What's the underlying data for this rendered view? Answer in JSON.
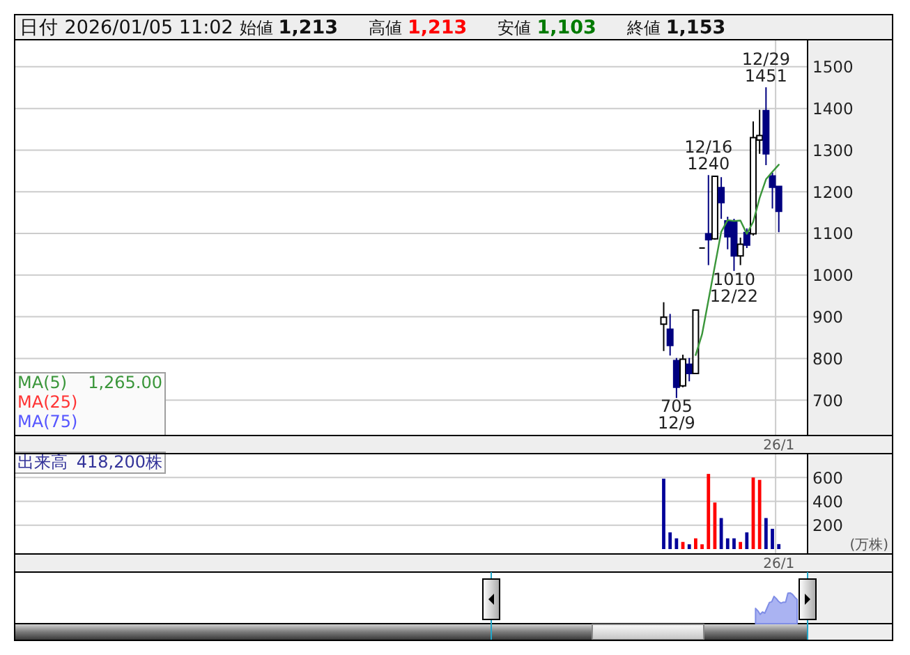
{
  "chart_data": [
    {
      "type": "candlestick",
      "title": "日付 2026/01/05 11:02",
      "subtitle": "始値 1,213 高値 1,213 安値 1,103 終値 1,153",
      "annotations": [
        "1,265.00",
        {
          "text": "705\n12/9",
          "y": 705
        },
        {
          "text": "12/16\n1240",
          "y": 1240
        },
        {
          "text": "1010\n12/22",
          "y": 1010
        },
        {
          "text": "12/29\n1451",
          "y": 1451
        }
      ],
      "categories": [
        null,
        null,
        null,
        null,
        null,
        null,
        null,
        null,
        null,
        null,
        null,
        null,
        null,
        null,
        null,
        null,
        null,
        null,
        null,
        null,
        null,
        null,
        null,
        null,
        null,
        null,
        null,
        null,
        null,
        null,
        null,
        null,
        null,
        null,
        null,
        null,
        null,
        null,
        null,
        null,
        null,
        null,
        null,
        null,
        null,
        null,
        null,
        null,
        null,
        null,
        null,
        null,
        null,
        null,
        null,
        null,
        null,
        null,
        null,
        null,
        null,
        null,
        null,
        null,
        null,
        null,
        null,
        null,
        null,
        null,
        null,
        null,
        null,
        null,
        null,
        null,
        null,
        null,
        null,
        null,
        null,
        null,
        null,
        null,
        null,
        null,
        null,
        null,
        null,
        null,
        null,
        null,
        null,
        null,
        null,
        null,
        null,
        null,
        null,
        null,
        null,
        null,
        null,
        null,
        null,
        null,
        null,
        null,
        null,
        null,
        null,
        null,
        null,
        null,
        null,
        null,
        null,
        null,
        null,
        "26/1",
        null,
        null,
        null,
        null
      ],
      "ohlc": [
        null,
        null,
        null,
        null,
        null,
        null,
        null,
        null,
        null,
        null,
        null,
        null,
        null,
        null,
        null,
        null,
        null,
        null,
        null,
        null,
        null,
        null,
        null,
        null,
        null,
        null,
        null,
        null,
        null,
        null,
        null,
        null,
        null,
        null,
        null,
        null,
        null,
        null,
        null,
        null,
        null,
        null,
        null,
        null,
        null,
        null,
        null,
        null,
        null,
        null,
        null,
        null,
        null,
        null,
        null,
        null,
        null,
        null,
        null,
        null,
        null,
        null,
        null,
        null,
        null,
        null,
        null,
        null,
        null,
        null,
        null,
        null,
        null,
        null,
        null,
        null,
        null,
        null,
        null,
        null,
        null,
        null,
        null,
        null,
        null,
        null,
        null,
        null,
        null,
        null,
        null,
        null,
        null,
        null,
        null,
        null,
        null,
        null,
        null,
        null,
        null,
        [
          882,
          935,
          818,
          899
        ],
        [
          870,
          907,
          807,
          831
        ],
        [
          795,
          801,
          705,
          731
        ],
        [
          734,
          809,
          731,
          798
        ],
        [
          786,
          801,
          745,
          764
        ],
        [
          764,
          916,
          764,
          916
        ],
        [
          1065,
          1065,
          1065,
          1065
        ],
        [
          1099,
          1240,
          1024,
          1085
        ],
        [
          1087,
          1239,
          1085,
          1237
        ],
        [
          1210,
          1235,
          1135,
          1174
        ],
        [
          1130,
          1140,
          1062,
          1092
        ],
        [
          1130,
          1135,
          1010,
          1046
        ],
        [
          1046,
          1090,
          1024,
          1074
        ],
        [
          1102,
          1112,
          1065,
          1072
        ],
        [
          1099,
          1369,
          1095,
          1330
        ],
        [
          1324,
          1397,
          1291,
          1335
        ],
        [
          1395,
          1451,
          1264,
          1291
        ],
        [
          1238,
          1246,
          1160,
          1211
        ],
        [
          1213,
          1213,
          1103,
          1153
        ],
        null,
        null,
        null,
        null
      ],
      "colors": [
        null,
        null,
        null,
        null,
        null,
        null,
        null,
        null,
        null,
        null,
        null,
        null,
        null,
        null,
        null,
        null,
        null,
        null,
        null,
        null,
        null,
        null,
        null,
        null,
        null,
        null,
        null,
        null,
        null,
        null,
        null,
        null,
        null,
        null,
        null,
        null,
        null,
        null,
        null,
        null,
        null,
        null,
        null,
        null,
        null,
        null,
        null,
        null,
        null,
        null,
        null,
        null,
        null,
        null,
        null,
        null,
        null,
        null,
        null,
        null,
        null,
        null,
        null,
        null,
        null,
        null,
        null,
        null,
        null,
        null,
        null,
        null,
        null,
        null,
        null,
        null,
        null,
        null,
        null,
        null,
        null,
        null,
        null,
        null,
        null,
        null,
        null,
        null,
        null,
        null,
        null,
        null,
        null,
        null,
        null,
        null,
        null,
        null,
        null,
        null,
        null,
        "#ffffff",
        "#000080",
        "#000080",
        "#ffffff",
        "#000080",
        "#ffffff",
        "#000000",
        "#000080",
        "#ffffff",
        "#000080",
        "#000080",
        "#000080",
        "#ffffff",
        "#000080",
        "#ffffff",
        "#ffffff",
        "#000080",
        "#000080",
        "#000080",
        null,
        null,
        null,
        null
      ],
      "series": [
        {
          "name": "MA(5)",
          "type": "line",
          "color": "#3a963a",
          "values": [
            null,
            null,
            null,
            null,
            null,
            null,
            null,
            null,
            null,
            null,
            null,
            null,
            null,
            null,
            null,
            null,
            null,
            null,
            null,
            null,
            null,
            null,
            null,
            null,
            null,
            null,
            null,
            null,
            null,
            null,
            null,
            null,
            null,
            null,
            null,
            null,
            null,
            null,
            null,
            null,
            null,
            null,
            null,
            null,
            null,
            null,
            null,
            null,
            null,
            null,
            null,
            null,
            null,
            null,
            null,
            null,
            null,
            null,
            null,
            null,
            null,
            null,
            null,
            null,
            null,
            null,
            null,
            null,
            null,
            null,
            null,
            null,
            null,
            null,
            null,
            null,
            null,
            null,
            null,
            null,
            null,
            null,
            null,
            null,
            null,
            null,
            null,
            null,
            null,
            null,
            null,
            null,
            null,
            null,
            null,
            null,
            null,
            null,
            null,
            null,
            null,
            null,
            null,
            null,
            null,
            null,
            808,
            858,
            940,
            1022,
            1104,
            1132,
            1130,
            1131,
            1099,
            1128,
            1185,
            1230,
            1248,
            1265,
            null,
            null,
            null,
            null
          ]
        },
        {
          "name": "MA(25)",
          "type": "line",
          "color": "#ff3333",
          "values": [
            null,
            null,
            null,
            null,
            null,
            null,
            null,
            null,
            null,
            null,
            null,
            null,
            null,
            null,
            null,
            null,
            null,
            null,
            null,
            null,
            null,
            null,
            null,
            null,
            null,
            null,
            null,
            null,
            null,
            null,
            null,
            null,
            null,
            null,
            null,
            null,
            null,
            null,
            null,
            null,
            null,
            null,
            null,
            null,
            null,
            null,
            null,
            null,
            null,
            null,
            null,
            null,
            null,
            null,
            null,
            null,
            null,
            null,
            null,
            null,
            null,
            null,
            null,
            null,
            null,
            null,
            null,
            null,
            null,
            null,
            null,
            null,
            null,
            null,
            null,
            null,
            null,
            null,
            null,
            null,
            null,
            null,
            null,
            null,
            null,
            null,
            null,
            null,
            null,
            null,
            null,
            null,
            null,
            null,
            null,
            null,
            null,
            null,
            null,
            null,
            null,
            null,
            null,
            null,
            null,
            null,
            null,
            null,
            null,
            null,
            null,
            null,
            null,
            null,
            null,
            null,
            null,
            null,
            null,
            null,
            null,
            null,
            null,
            null
          ]
        },
        {
          "name": "MA(75)",
          "type": "line",
          "color": "#5555ff",
          "values": [
            null,
            null,
            null,
            null,
            null,
            null,
            null,
            null,
            null,
            null,
            null,
            null,
            null,
            null,
            null,
            null,
            null,
            null,
            null,
            null,
            null,
            null,
            null,
            null,
            null,
            null,
            null,
            null,
            null,
            null,
            null,
            null,
            null,
            null,
            null,
            null,
            null,
            null,
            null,
            null,
            null,
            null,
            null,
            null,
            null,
            null,
            null,
            null,
            null,
            null,
            null,
            null,
            null,
            null,
            null,
            null,
            null,
            null,
            null,
            null,
            null,
            null,
            null,
            null,
            null,
            null,
            null,
            null,
            null,
            null,
            null,
            null,
            null,
            null,
            null,
            null,
            null,
            null,
            null,
            null,
            null,
            null,
            null,
            null,
            null,
            null,
            null,
            null,
            null,
            null,
            null,
            null,
            null,
            null,
            null,
            null,
            null,
            null,
            null,
            null,
            null,
            null,
            null,
            null,
            null,
            null,
            null,
            null,
            null,
            null,
            null,
            null,
            null,
            null,
            null,
            null,
            null,
            null,
            null,
            null,
            null,
            null,
            null,
            null
          ]
        }
      ],
      "ylim": [
        615,
        1565
      ],
      "yticks": [
        700,
        800,
        900,
        1000,
        1100,
        1200,
        1300,
        1400,
        1500
      ],
      "grid": true,
      "legend": "bottom left"
    },
    {
      "type": "bar",
      "categories": [
        null,
        null,
        null,
        null,
        null,
        null,
        null,
        null,
        null,
        null,
        null,
        null,
        null,
        null,
        null,
        null,
        null,
        null,
        null,
        null,
        null,
        null,
        null,
        null,
        null,
        null,
        null,
        null,
        null,
        null,
        null,
        null,
        null,
        null,
        null,
        null,
        null,
        null,
        null,
        null,
        null,
        null,
        null,
        null,
        null,
        null,
        null,
        null,
        null,
        null,
        null,
        null,
        null,
        null,
        null,
        null,
        null,
        null,
        null,
        null,
        null,
        null,
        null,
        null,
        null,
        null,
        null,
        null,
        null,
        null,
        null,
        null,
        null,
        null,
        null,
        null,
        null,
        null,
        null,
        null,
        null,
        null,
        null,
        null,
        null,
        null,
        null,
        null,
        null,
        null,
        null,
        null,
        null,
        null,
        null,
        null,
        null,
        null,
        null,
        null,
        null,
        null,
        null,
        null,
        null,
        null,
        null,
        null,
        null,
        null,
        null,
        null,
        null,
        null,
        null,
        null,
        null,
        null,
        null,
        "26/1",
        null,
        null,
        null,
        null
      ],
      "series": [
        {
          "name": "出来高",
          "colors": [
            null,
            null,
            null,
            null,
            null,
            null,
            null,
            null,
            null,
            null,
            null,
            null,
            null,
            null,
            null,
            null,
            null,
            null,
            null,
            null,
            null,
            null,
            null,
            null,
            null,
            null,
            null,
            null,
            null,
            null,
            null,
            null,
            null,
            null,
            null,
            null,
            null,
            null,
            null,
            null,
            null,
            null,
            null,
            null,
            null,
            null,
            null,
            null,
            null,
            null,
            null,
            null,
            null,
            null,
            null,
            null,
            null,
            null,
            null,
            null,
            null,
            null,
            null,
            null,
            null,
            null,
            null,
            null,
            null,
            null,
            null,
            null,
            null,
            null,
            null,
            null,
            null,
            null,
            null,
            null,
            null,
            null,
            null,
            null,
            null,
            null,
            null,
            null,
            null,
            null,
            null,
            null,
            null,
            null,
            null,
            null,
            null,
            null,
            null,
            null,
            null,
            "#000099",
            "#000099",
            "#000099",
            "#ff0000",
            "#000099",
            "#ff0000",
            "#ff0000",
            "#ff0000",
            "#ff0000",
            "#000099",
            "#000099",
            "#000099",
            "#ff0000",
            "#000099",
            "#ff0000",
            "#ff0000",
            "#000099",
            "#000099",
            "#000099",
            null,
            null,
            null,
            null
          ],
          "values": [
            null,
            null,
            null,
            null,
            null,
            null,
            null,
            null,
            null,
            null,
            null,
            null,
            null,
            null,
            null,
            null,
            null,
            null,
            null,
            null,
            null,
            null,
            null,
            null,
            null,
            null,
            null,
            null,
            null,
            null,
            null,
            null,
            null,
            null,
            null,
            null,
            null,
            null,
            null,
            null,
            null,
            null,
            null,
            null,
            null,
            null,
            null,
            null,
            null,
            null,
            null,
            null,
            null,
            null,
            null,
            null,
            null,
            null,
            null,
            null,
            null,
            null,
            null,
            null,
            null,
            null,
            null,
            null,
            null,
            null,
            null,
            null,
            null,
            null,
            null,
            null,
            null,
            null,
            null,
            null,
            null,
            null,
            null,
            null,
            null,
            null,
            null,
            null,
            null,
            null,
            null,
            null,
            null,
            null,
            null,
            null,
            null,
            null,
            null,
            null,
            null,
            590,
            140,
            90,
            60,
            40,
            90,
            40,
            630,
            390,
            260,
            90,
            90,
            60,
            140,
            600,
            580,
            260,
            170,
            41.82,
            null,
            null,
            null,
            null
          ]
        }
      ],
      "ylabel": "(万株)",
      "ylim": [
        0,
        800
      ],
      "yticks": [
        200,
        400,
        600
      ],
      "grid": true,
      "legend": "top left",
      "annotations": [
        "418,200株"
      ]
    }
  ]
}
